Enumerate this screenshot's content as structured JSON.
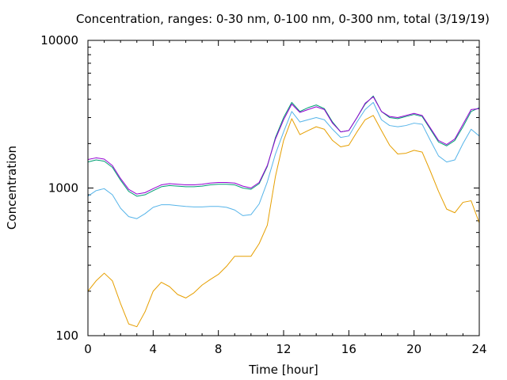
{
  "chart_data": {
    "type": "line",
    "title": "Concentration, ranges: 0-30 nm, 0-100 nm, 0-300 nm, total (3/19/19)",
    "xlabel": "Time [hour]",
    "ylabel": "Concentration",
    "xlim": [
      0,
      24
    ],
    "ylim": [
      100,
      10000
    ],
    "yscale": "log",
    "grid": false,
    "legend": "none",
    "x_ticks": [
      "0",
      "4",
      "8",
      "12",
      "16",
      "20",
      "24"
    ],
    "y_ticks": [
      "100",
      "1000",
      "10000"
    ],
    "x": [
      0,
      0.5,
      1,
      1.5,
      2,
      2.5,
      3,
      3.5,
      4,
      4.5,
      5,
      5.5,
      6,
      6.5,
      7,
      7.5,
      8,
      8.5,
      9,
      9.5,
      10,
      10.5,
      11,
      11.5,
      12,
      12.5,
      13,
      13.5,
      14,
      14.5,
      15,
      15.5,
      16,
      16.5,
      17,
      17.5,
      18,
      18.5,
      19,
      19.5,
      20,
      20.5,
      21,
      21.5,
      22,
      22.5,
      23,
      23.5,
      24
    ],
    "series": [
      {
        "color": "#e69f00",
        "values": [
          200,
          235,
          265,
          235,
          165,
          120,
          115,
          145,
          200,
          230,
          215,
          190,
          180,
          195,
          220,
          240,
          260,
          295,
          345,
          345,
          345,
          420,
          560,
          1200,
          2100,
          2950,
          2300,
          2450,
          2600,
          2500,
          2100,
          1900,
          1950,
          2400,
          2900,
          3100,
          2450,
          1950,
          1700,
          1720,
          1800,
          1750,
          1300,
          950,
          720,
          680,
          800,
          820,
          580
        ]
      },
      {
        "color": "#56b4e9",
        "values": [
          880,
          960,
          990,
          900,
          730,
          640,
          620,
          670,
          740,
          770,
          770,
          760,
          750,
          745,
          745,
          750,
          750,
          740,
          710,
          650,
          660,
          780,
          1100,
          1700,
          2400,
          3300,
          2800,
          2900,
          3000,
          2900,
          2500,
          2200,
          2250,
          2800,
          3400,
          3800,
          2900,
          2650,
          2600,
          2650,
          2750,
          2700,
          2100,
          1650,
          1500,
          1550,
          2000,
          2500,
          2250
        ]
      },
      {
        "color": "#009e73",
        "values": [
          1500,
          1550,
          1520,
          1380,
          1130,
          950,
          880,
          900,
          960,
          1020,
          1040,
          1030,
          1020,
          1020,
          1030,
          1050,
          1060,
          1060,
          1050,
          1000,
          980,
          1070,
          1400,
          2200,
          3000,
          3800,
          3300,
          3500,
          3650,
          3450,
          2800,
          2400,
          2450,
          3000,
          3700,
          4200,
          3300,
          3000,
          2950,
          3050,
          3150,
          3050,
          2500,
          2050,
          1930,
          2100,
          2600,
          3300,
          3500
        ]
      },
      {
        "color": "#9400d3",
        "values": [
          1560,
          1600,
          1570,
          1420,
          1160,
          980,
          910,
          930,
          990,
          1050,
          1070,
          1060,
          1050,
          1050,
          1060,
          1080,
          1090,
          1090,
          1080,
          1030,
          1000,
          1090,
          1420,
          2150,
          2900,
          3700,
          3250,
          3400,
          3550,
          3400,
          2750,
          2400,
          2450,
          3000,
          3750,
          4150,
          3300,
          3050,
          3000,
          3100,
          3200,
          3100,
          2550,
          2100,
          1970,
          2150,
          2700,
          3400,
          3450
        ]
      }
    ]
  }
}
